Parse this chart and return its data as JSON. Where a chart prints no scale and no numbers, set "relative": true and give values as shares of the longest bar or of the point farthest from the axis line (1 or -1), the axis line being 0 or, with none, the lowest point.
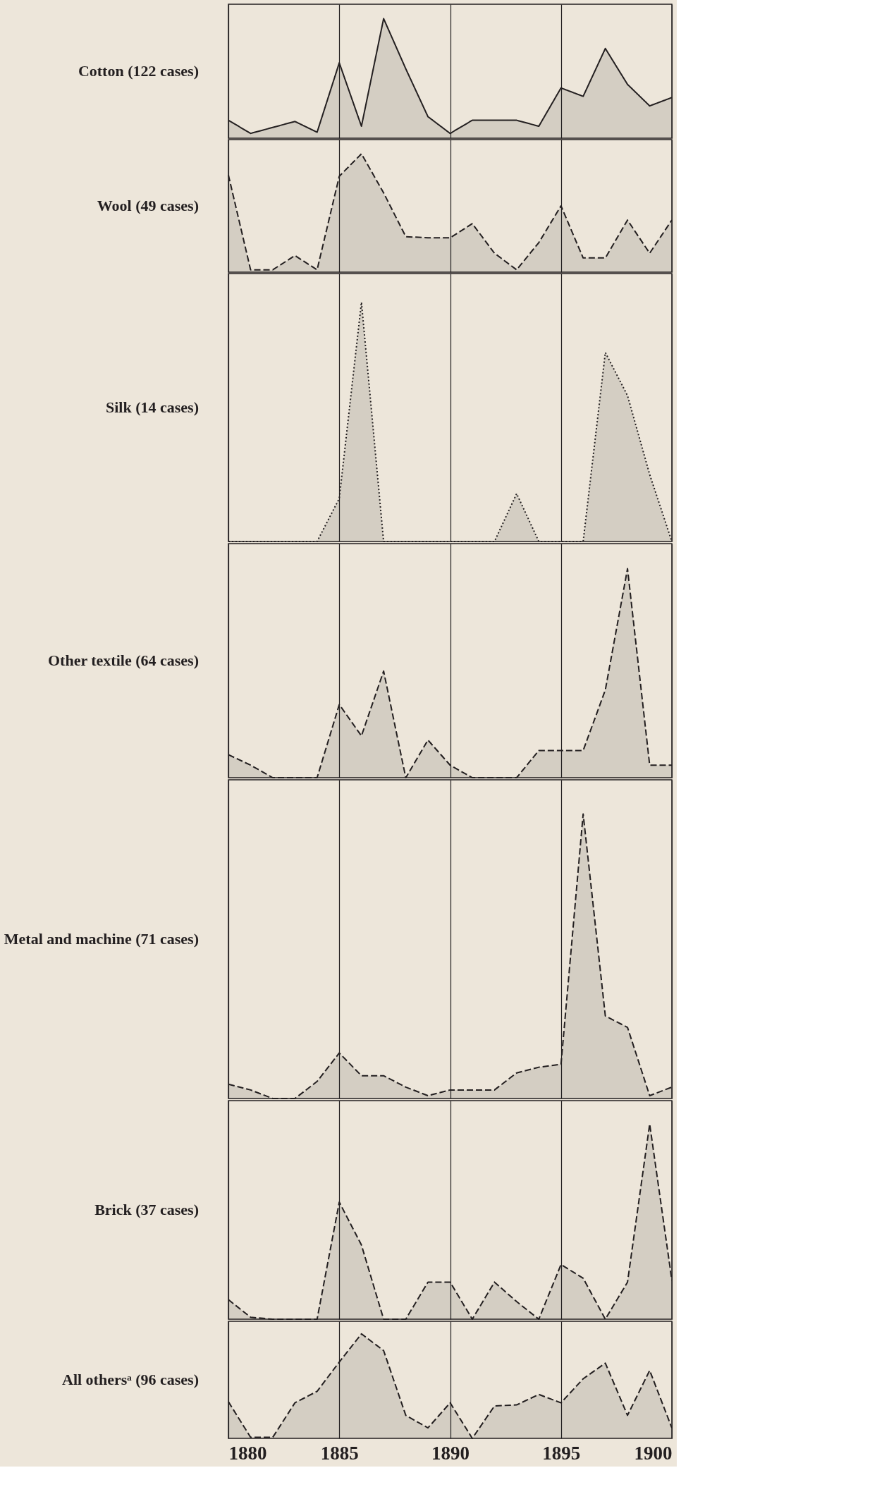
{
  "chart_data": [
    {
      "type": "area",
      "title": "Cotton (122 cases)",
      "relative": true,
      "color": "#231f20",
      "line_style": "solid",
      "grid": "x",
      "tick_labels": false,
      "xlim": [
        1880,
        1900
      ],
      "xticks": [
        1880,
        1885,
        1890,
        1895,
        1900
      ],
      "x": [
        1880,
        1881,
        1882,
        1883,
        1884,
        1885,
        1886,
        1887,
        1888,
        1889,
        1890,
        1891,
        1892,
        1893,
        1894,
        1895,
        1896,
        1897,
        1898,
        1899,
        1900
      ],
      "values": [
        0.15,
        0.04,
        0.09,
        0.14,
        0.05,
        0.63,
        0.1,
        1.0,
        0.58,
        0.18,
        0.04,
        0.15,
        0.15,
        0.15,
        0.1,
        0.42,
        0.35,
        0.75,
        0.45,
        0.27,
        0.34
      ]
    },
    {
      "type": "area",
      "title": "Wool (49 cases)",
      "relative": true,
      "color": "#231f20",
      "line_style": "dashed",
      "grid": "x",
      "tick_labels": false,
      "xlim": [
        1880,
        1900
      ],
      "xticks": [
        1880,
        1885,
        1890,
        1895,
        1900
      ],
      "x": [
        1880,
        1881,
        1882,
        1883,
        1884,
        1885,
        1886,
        1887,
        1888,
        1889,
        1890,
        1891,
        1892,
        1893,
        1894,
        1895,
        1896,
        1897,
        1898,
        1899,
        1900
      ],
      "values": [
        0.82,
        0.02,
        0.02,
        0.14,
        0.02,
        0.81,
        1.0,
        0.67,
        0.3,
        0.29,
        0.29,
        0.41,
        0.16,
        0.02,
        0.25,
        0.56,
        0.12,
        0.12,
        0.44,
        0.16,
        0.44
      ]
    },
    {
      "type": "area",
      "title": "Silk (14 cases)",
      "relative": true,
      "color": "#231f20",
      "line_style": "dotted",
      "grid": "x",
      "tick_labels": false,
      "xlim": [
        1880,
        1900
      ],
      "xticks": [
        1880,
        1885,
        1890,
        1895,
        1900
      ],
      "x": [
        1880,
        1881,
        1882,
        1883,
        1884,
        1885,
        1886,
        1887,
        1888,
        1889,
        1890,
        1891,
        1892,
        1893,
        1894,
        1895,
        1896,
        1897,
        1898,
        1899,
        1900
      ],
      "values": [
        0,
        0,
        0,
        0,
        0,
        0.18,
        1.0,
        0,
        0,
        0,
        0,
        0,
        0,
        0.2,
        0,
        0,
        0,
        0.79,
        0.61,
        0.28,
        0
      ]
    },
    {
      "type": "area",
      "title": "Other textile (64 cases)",
      "relative": true,
      "color": "#231f20",
      "line_style": "dashed",
      "grid": "x",
      "tick_labels": false,
      "xlim": [
        1880,
        1900
      ],
      "xticks": [
        1880,
        1885,
        1890,
        1895,
        1900
      ],
      "x": [
        1880,
        1881,
        1882,
        1883,
        1884,
        1885,
        1886,
        1887,
        1888,
        1889,
        1890,
        1891,
        1892,
        1893,
        1894,
        1895,
        1896,
        1897,
        1898,
        1899,
        1900
      ],
      "values": [
        0.11,
        0.06,
        0,
        0,
        0,
        0.35,
        0.2,
        0.51,
        0,
        0.18,
        0.06,
        0,
        0,
        0,
        0.13,
        0.13,
        0.13,
        0.42,
        1.0,
        0.06,
        0.06
      ]
    },
    {
      "type": "area",
      "title": "Metal and machine (71 cases)",
      "relative": true,
      "color": "#231f20",
      "line_style": "dashed",
      "grid": "x",
      "tick_labels": false,
      "xlim": [
        1880,
        1900
      ],
      "xticks": [
        1880,
        1885,
        1890,
        1895,
        1900
      ],
      "x": [
        1880,
        1881,
        1882,
        1883,
        1884,
        1885,
        1886,
        1887,
        1888,
        1889,
        1890,
        1891,
        1892,
        1893,
        1894,
        1895,
        1896,
        1897,
        1898,
        1899,
        1900
      ],
      "values": [
        0.05,
        0.03,
        0,
        0,
        0.06,
        0.16,
        0.08,
        0.08,
        0.04,
        0.01,
        0.03,
        0.03,
        0.03,
        0.09,
        0.11,
        0.12,
        1.0,
        0.29,
        0.25,
        0.01,
        0.04
      ]
    },
    {
      "type": "area",
      "title": "Brick (37 cases)",
      "relative": true,
      "color": "#231f20",
      "line_style": "dashed",
      "grid": "x",
      "tick_labels": false,
      "xlim": [
        1880,
        1900
      ],
      "xticks": [
        1880,
        1885,
        1890,
        1895,
        1900
      ],
      "x": [
        1880,
        1881,
        1882,
        1883,
        1884,
        1885,
        1886,
        1887,
        1888,
        1889,
        1890,
        1891,
        1892,
        1893,
        1894,
        1895,
        1896,
        1897,
        1898,
        1899,
        1900
      ],
      "values": [
        0.1,
        0.01,
        0,
        0,
        0,
        0.6,
        0.38,
        0,
        0,
        0.19,
        0.19,
        0,
        0.19,
        0.09,
        0,
        0.28,
        0.21,
        0,
        0.19,
        1.0,
        0.2
      ]
    },
    {
      "type": "area",
      "title": "All othersᵃ (96 cases)",
      "relative": true,
      "color": "#231f20",
      "line_style": "dashed",
      "grid": "x",
      "tick_labels": "x",
      "xlim": [
        1880,
        1900
      ],
      "xticks": [
        1880,
        1885,
        1890,
        1895,
        1900
      ],
      "x": [
        1880,
        1881,
        1882,
        1883,
        1884,
        1885,
        1886,
        1887,
        1888,
        1889,
        1890,
        1891,
        1892,
        1893,
        1894,
        1895,
        1896,
        1897,
        1898,
        1899,
        1900
      ],
      "values": [
        0.35,
        0.01,
        0.01,
        0.34,
        0.45,
        0.73,
        1.0,
        0.84,
        0.22,
        0.1,
        0.34,
        0,
        0.31,
        0.32,
        0.42,
        0.34,
        0.57,
        0.72,
        0.22,
        0.65,
        0.1
      ]
    }
  ]
}
